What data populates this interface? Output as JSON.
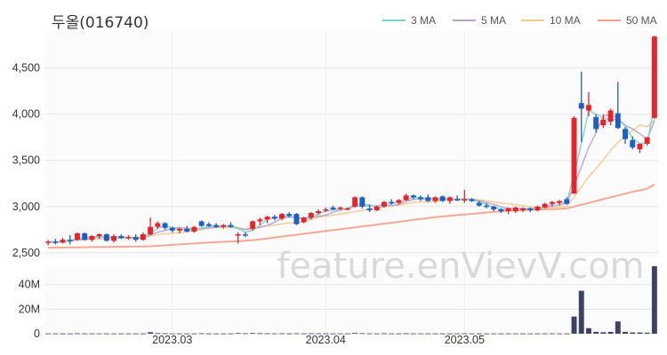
{
  "chart_data": {
    "type": "candlestick",
    "title": "두올(016740)",
    "watermark": "feature.enVievV.com",
    "legend": [
      {
        "label": "3 MA",
        "color": "#7ecfcf"
      },
      {
        "label": "5 MA",
        "color": "#b9a3c8"
      },
      {
        "label": "10 MA",
        "color": "#f2c98f"
      },
      {
        "label": "50 MA",
        "color": "#f4a088"
      }
    ],
    "colors": {
      "up": "#e8242b",
      "down": "#1f5fbf",
      "volume": "#3f4262"
    },
    "price_axis": {
      "ticks": [
        2500,
        3000,
        3500,
        4000,
        4500
      ],
      "labels": [
        "2,500",
        "3,000",
        "3,500",
        "4,000",
        "4,500"
      ],
      "ylim": [
        2450,
        4900
      ]
    },
    "volume_axis": {
      "ticks": [
        0,
        20,
        40
      ],
      "labels": [
        "0",
        "20M",
        "40M"
      ],
      "ylim": [
        0,
        55
      ]
    },
    "x_labels": [
      {
        "index": 17,
        "text": "2023.03"
      },
      {
        "index": 38,
        "text": "2023.04"
      },
      {
        "index": 57,
        "text": "2023.05"
      }
    ],
    "candles": [
      [
        2610,
        2640,
        2580,
        2620
      ],
      [
        2620,
        2650,
        2590,
        2610
      ],
      [
        2610,
        2660,
        2600,
        2640
      ],
      [
        2640,
        2690,
        2590,
        2630
      ],
      [
        2640,
        2720,
        2630,
        2710
      ],
      [
        2710,
        2720,
        2630,
        2640
      ],
      [
        2640,
        2690,
        2620,
        2680
      ],
      [
        2680,
        2710,
        2650,
        2700
      ],
      [
        2700,
        2710,
        2620,
        2630
      ],
      [
        2630,
        2700,
        2610,
        2680
      ],
      [
        2680,
        2700,
        2650,
        2660
      ],
      [
        2660,
        2690,
        2640,
        2670
      ],
      [
        2670,
        2700,
        2620,
        2640
      ],
      [
        2640,
        2720,
        2630,
        2700
      ],
      [
        2700,
        2880,
        2690,
        2780
      ],
      [
        2780,
        2840,
        2760,
        2820
      ],
      [
        2820,
        2830,
        2750,
        2770
      ],
      [
        2770,
        2780,
        2720,
        2740
      ],
      [
        2740,
        2770,
        2710,
        2760
      ],
      [
        2760,
        2790,
        2720,
        2730
      ],
      [
        2730,
        2790,
        2720,
        2780
      ],
      [
        2840,
        2850,
        2780,
        2790
      ],
      [
        2810,
        2830,
        2780,
        2790
      ],
      [
        2800,
        2820,
        2770,
        2780
      ],
      [
        2780,
        2810,
        2760,
        2800
      ],
      [
        2800,
        2830,
        2770,
        2780
      ],
      [
        2700,
        2720,
        2600,
        2700
      ],
      [
        2700,
        2720,
        2670,
        2690
      ],
      [
        2760,
        2850,
        2740,
        2840
      ],
      [
        2840,
        2880,
        2800,
        2860
      ],
      [
        2860,
        2900,
        2820,
        2890
      ],
      [
        2890,
        2910,
        2850,
        2870
      ],
      [
        2870,
        2930,
        2850,
        2920
      ],
      [
        2920,
        2940,
        2880,
        2900
      ],
      [
        2920,
        2930,
        2800,
        2810
      ],
      [
        2830,
        2890,
        2820,
        2880
      ],
      [
        2880,
        2940,
        2860,
        2930
      ],
      [
        2930,
        2970,
        2910,
        2950
      ],
      [
        2960,
        2990,
        2940,
        2970
      ],
      [
        2990,
        3010,
        2960,
        2970
      ],
      [
        2980,
        3000,
        2960,
        2990
      ],
      [
        2970,
        2990,
        2960,
        2980
      ],
      [
        3000,
        3110,
        2990,
        3100
      ],
      [
        3100,
        3110,
        2980,
        3000
      ],
      [
        2980,
        3020,
        2940,
        2960
      ],
      [
        2960,
        3010,
        2950,
        3000
      ],
      [
        3000,
        3060,
        2990,
        3050
      ],
      [
        3050,
        3080,
        3020,
        3040
      ],
      [
        3040,
        3080,
        3020,
        3070
      ],
      [
        3070,
        3140,
        3060,
        3120
      ],
      [
        3120,
        3130,
        3080,
        3100
      ],
      [
        3100,
        3120,
        3060,
        3080
      ],
      [
        3100,
        3130,
        3050,
        3060
      ],
      [
        3060,
        3110,
        3040,
        3100
      ],
      [
        3110,
        3120,
        3050,
        3060
      ],
      [
        3060,
        3110,
        3030,
        3100
      ],
      [
        3080,
        3120,
        3060,
        3070
      ],
      [
        3070,
        3180,
        3040,
        3080
      ],
      [
        3080,
        3090,
        3050,
        3060
      ],
      [
        3040,
        3060,
        3000,
        3010
      ],
      [
        3010,
        3040,
        2980,
        3000
      ],
      [
        3000,
        3010,
        2950,
        2970
      ],
      [
        2970,
        2980,
        2930,
        2950
      ],
      [
        2950,
        2990,
        2920,
        2980
      ],
      [
        2950,
        3000,
        2930,
        2990
      ],
      [
        2960,
        2990,
        2940,
        2980
      ],
      [
        2980,
        2990,
        2940,
        2960
      ],
      [
        2960,
        3010,
        2950,
        3000
      ],
      [
        2990,
        3040,
        2980,
        3030
      ],
      [
        3030,
        3060,
        3000,
        3050
      ],
      [
        3040,
        3070,
        3010,
        3060
      ],
      [
        3080,
        3100,
        3020,
        3030
      ],
      [
        3140,
        3980,
        3140,
        3960
      ],
      [
        4120,
        4460,
        3700,
        4060
      ],
      [
        4040,
        4240,
        3980,
        4100
      ],
      [
        3970,
        4000,
        3800,
        3840
      ],
      [
        3880,
        4000,
        3850,
        3940
      ],
      [
        3920,
        4060,
        3880,
        4040
      ],
      [
        4010,
        4350,
        3840,
        3850
      ],
      [
        3840,
        3860,
        3680,
        3730
      ],
      [
        3720,
        3760,
        3620,
        3640
      ],
      [
        3620,
        3680,
        3580,
        3680
      ],
      [
        3680,
        3750,
        3660,
        3750
      ],
      [
        3960,
        4850,
        3950,
        4840
      ]
    ],
    "volumes": [
      0.2,
      0.2,
      0.2,
      0.2,
      0.3,
      0.2,
      0.2,
      0.2,
      0.2,
      0.2,
      0.2,
      0.2,
      0.2,
      0.2,
      1.2,
      0.4,
      0.3,
      0.2,
      0.2,
      0.2,
      0.2,
      0.3,
      0.2,
      0.2,
      0.2,
      0.2,
      0.5,
      0.3,
      0.5,
      0.4,
      0.3,
      0.2,
      0.3,
      0.2,
      0.3,
      0.2,
      0.3,
      0.3,
      0.2,
      0.2,
      0.2,
      0.2,
      0.6,
      0.4,
      0.2,
      0.2,
      0.3,
      0.2,
      0.2,
      0.3,
      0.2,
      0.2,
      0.2,
      0.2,
      0.2,
      0.2,
      0.2,
      0.3,
      0.2,
      0.2,
      0.2,
      0.2,
      0.2,
      0.2,
      0.2,
      0.2,
      0.2,
      0.2,
      0.2,
      0.3,
      0.2,
      0.2,
      14,
      35,
      4.5,
      1.5,
      1.2,
      1.5,
      10,
      1.5,
      1,
      1,
      0.8,
      55
    ],
    "ma50": [
      2555,
      2556,
      2557,
      2558,
      2559,
      2560,
      2561,
      2562,
      2563,
      2564,
      2565,
      2566,
      2567,
      2568,
      2570,
      2575,
      2580,
      2585,
      2590,
      2595,
      2600,
      2605,
      2610,
      2614,
      2618,
      2622,
      2626,
      2630,
      2636,
      2645,
      2655,
      2665,
      2675,
      2685,
      2695,
      2705,
      2715,
      2725,
      2735,
      2745,
      2755,
      2765,
      2775,
      2785,
      2795,
      2805,
      2815,
      2825,
      2835,
      2845,
      2855,
      2865,
      2875,
      2885,
      2893,
      2900,
      2907,
      2914,
      2921,
      2928,
      2935,
      2942,
      2948,
      2953,
      2958,
      2962,
      2965,
      2968,
      2970,
      2972,
      2975,
      2980,
      3000,
      3020,
      3040,
      3060,
      3080,
      3100,
      3120,
      3140,
      3160,
      3175,
      3195,
      3240
    ]
  }
}
